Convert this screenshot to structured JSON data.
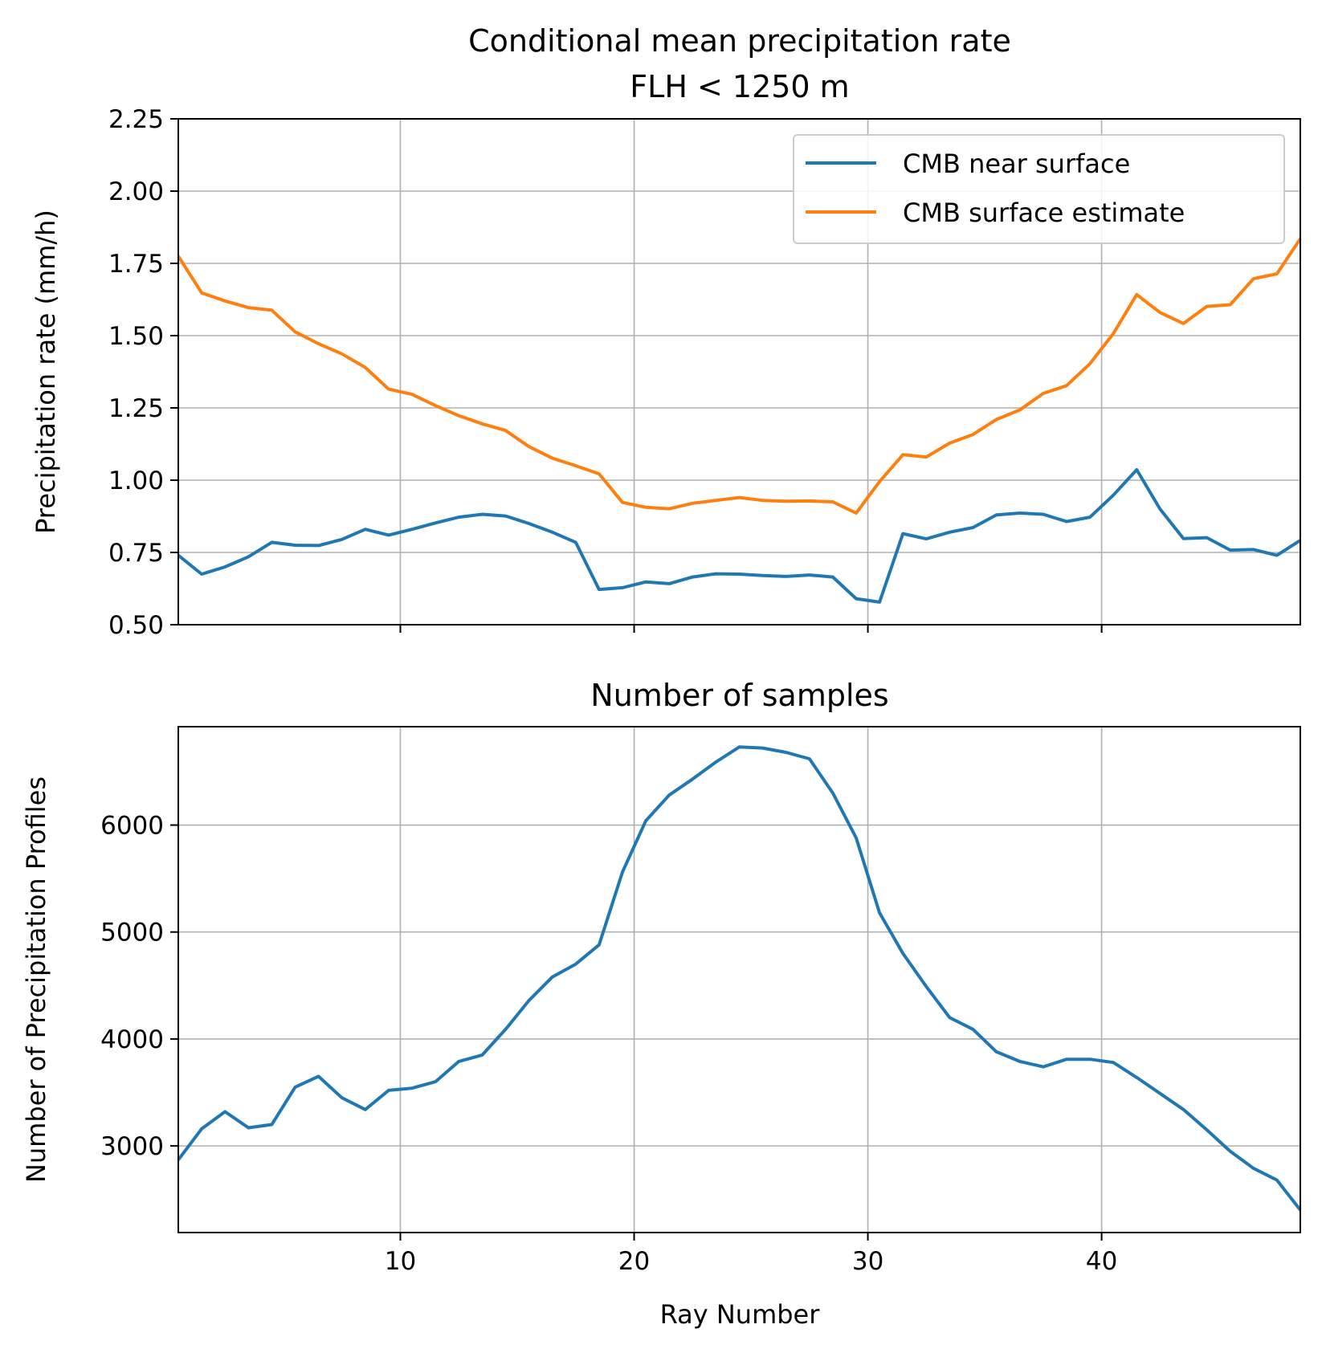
{
  "chart_data": [
    {
      "type": "line",
      "title": "Conditional mean precipitation rate\nFLH < 1250 m",
      "xlabel": "",
      "ylabel": "Precipitation rate (mm/h)",
      "xlim": [
        0.5,
        48.5
      ],
      "ylim": [
        0.5,
        2.25
      ],
      "xticks": [
        10,
        20,
        30,
        40
      ],
      "xtick_labels": [
        "",
        "",
        "",
        ""
      ],
      "yticks": [
        0.5,
        0.75,
        1.0,
        1.25,
        1.5,
        1.75,
        2.0,
        2.25
      ],
      "ytick_labels": [
        "0.50",
        "0.75",
        "1.00",
        "1.25",
        "1.50",
        "1.75",
        "2.00",
        "2.25"
      ],
      "grid": true,
      "legend": "upper right",
      "x": [
        0.5,
        1.5,
        2.5,
        3.5,
        4.5,
        5.5,
        6.5,
        7.5,
        8.5,
        9.5,
        10.5,
        11.5,
        12.5,
        13.5,
        14.5,
        15.5,
        16.5,
        17.5,
        18.5,
        19.5,
        20.5,
        21.5,
        22.5,
        23.5,
        24.5,
        25.5,
        26.5,
        27.5,
        28.5,
        29.5,
        30.5,
        31.5,
        32.5,
        33.5,
        34.5,
        35.5,
        36.5,
        37.5,
        38.5,
        39.5,
        40.5,
        41.5,
        42.5,
        43.5,
        44.5,
        45.5,
        46.5,
        47.5,
        48.5
      ],
      "series": [
        {
          "name": "CMB near surface",
          "color": "#1f77b4",
          "values": [
            0.74,
            0.675,
            0.7,
            0.735,
            0.785,
            0.775,
            0.774,
            0.795,
            0.83,
            0.81,
            0.83,
            0.852,
            0.872,
            0.882,
            0.876,
            0.85,
            0.82,
            0.785,
            0.622,
            0.628,
            0.648,
            0.642,
            0.665,
            0.676,
            0.675,
            0.67,
            0.667,
            0.672,
            0.665,
            0.59,
            0.578,
            0.815,
            0.797,
            0.82,
            0.836,
            0.88,
            0.886,
            0.882,
            0.857,
            0.872,
            0.948,
            1.036,
            0.9,
            0.798,
            0.801,
            0.758,
            0.76,
            0.74,
            0.792
          ]
        },
        {
          "name": "CMB surface estimate",
          "color": "#ff7f0e",
          "values": [
            1.775,
            1.648,
            1.62,
            1.597,
            1.588,
            1.513,
            1.472,
            1.437,
            1.39,
            1.315,
            1.297,
            1.258,
            1.223,
            1.195,
            1.172,
            1.116,
            1.076,
            1.05,
            1.022,
            0.923,
            0.906,
            0.901,
            0.92,
            0.93,
            0.94,
            0.93,
            0.927,
            0.928,
            0.925,
            0.886,
            0.995,
            1.088,
            1.08,
            1.128,
            1.158,
            1.21,
            1.243,
            1.3,
            1.327,
            1.403,
            1.507,
            1.642,
            1.58,
            1.542,
            1.601,
            1.607,
            1.697,
            1.714,
            1.835
          ]
        }
      ]
    },
    {
      "type": "line",
      "title": "Number of samples",
      "xlabel": "Ray Number",
      "ylabel": "Number of Precipitation Profiles",
      "xlim": [
        0.5,
        48.5
      ],
      "ylim": [
        2190,
        6920
      ],
      "xticks": [
        10,
        20,
        30,
        40
      ],
      "xtick_labels": [
        "10",
        "20",
        "30",
        "40"
      ],
      "yticks": [
        3000,
        4000,
        5000,
        6000
      ],
      "ytick_labels": [
        "3000",
        "4000",
        "5000",
        "6000"
      ],
      "grid": true,
      "x": [
        0.5,
        1.5,
        2.5,
        3.5,
        4.5,
        5.5,
        6.5,
        7.5,
        8.5,
        9.5,
        10.5,
        11.5,
        12.5,
        13.5,
        14.5,
        15.5,
        16.5,
        17.5,
        18.5,
        19.5,
        20.5,
        21.5,
        22.5,
        23.5,
        24.5,
        25.5,
        26.5,
        27.5,
        28.5,
        29.5,
        30.5,
        31.5,
        32.5,
        33.5,
        34.5,
        35.5,
        36.5,
        37.5,
        38.5,
        39.5,
        40.5,
        41.5,
        42.5,
        43.5,
        44.5,
        45.5,
        46.5,
        47.5,
        48.5
      ],
      "series": [
        {
          "color": "#1f77b4",
          "values": [
            2870,
            3160,
            3320,
            3170,
            3200,
            3550,
            3650,
            3450,
            3340,
            3520,
            3540,
            3600,
            3790,
            3850,
            4090,
            4360,
            4580,
            4700,
            4880,
            5560,
            6040,
            6280,
            6430,
            6590,
            6730,
            6720,
            6680,
            6620,
            6300,
            5880,
            5180,
            4800,
            4490,
            4200,
            4090,
            3880,
            3790,
            3740,
            3810,
            3810,
            3780,
            3640,
            3490,
            3340,
            3150,
            2950,
            2790,
            2680,
            2400
          ]
        }
      ]
    }
  ]
}
